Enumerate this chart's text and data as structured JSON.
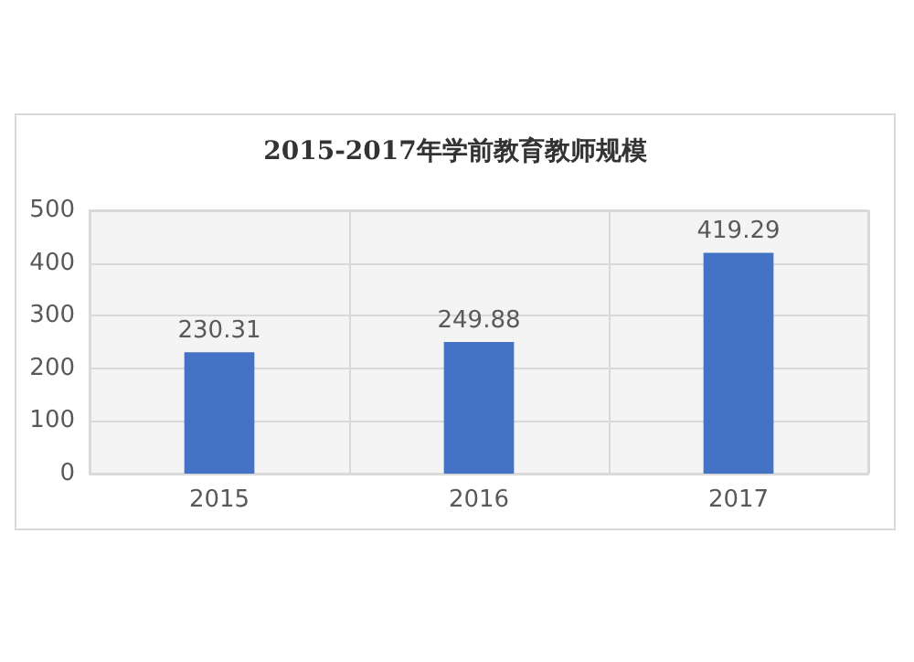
{
  "chart_data": {
    "type": "bar",
    "title": "2015-2017年学前教育教师规模",
    "categories": [
      "2015",
      "2016",
      "2017"
    ],
    "values": [
      230.31,
      249.88,
      419.29
    ],
    "color": "#4472c4",
    "ylim": [
      0,
      500
    ],
    "yticks": [
      0,
      100,
      200,
      300,
      400,
      500
    ],
    "grid": true,
    "data_labels": true
  }
}
